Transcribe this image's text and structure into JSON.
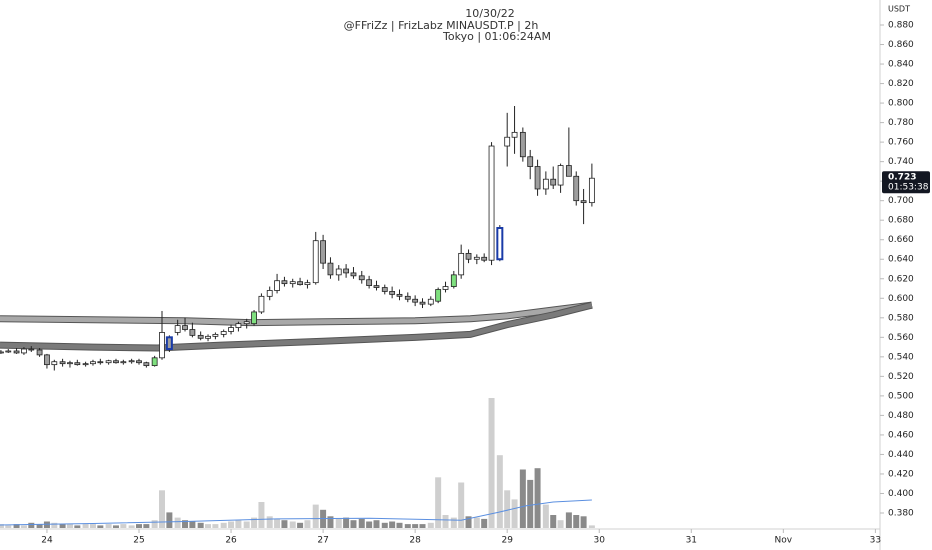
{
  "chart_data": {
    "type": "candlestick",
    "header": [
      "10/30/22",
      "@FFriZz | FrizLabz    MINAUSDT.P | 2h",
      "Tokyo | 01:06:24AM"
    ],
    "currency": "USDT",
    "countdown": "01:53:38",
    "x": [
      23.5,
      23.58,
      23.67,
      23.75,
      23.83,
      23.92,
      24,
      24.08,
      24.17,
      24.25,
      24.33,
      24.42,
      24.5,
      24.58,
      24.67,
      24.75,
      24.83,
      24.92,
      25,
      25.08,
      25.17,
      25.25,
      25.33,
      25.42,
      25.5,
      25.58,
      25.67,
      25.75,
      25.83,
      25.92,
      26,
      26.08,
      26.17,
      26.25,
      26.33,
      26.42,
      26.5,
      26.58,
      26.67,
      26.75,
      26.83,
      26.92,
      27,
      27.08,
      27.17,
      27.25,
      27.33,
      27.42,
      27.5,
      27.58,
      27.67,
      27.75,
      27.83,
      27.92,
      28,
      28.08,
      28.17,
      28.25,
      28.33,
      28.42,
      28.5,
      28.58,
      28.67,
      28.75,
      28.83,
      28.92,
      29,
      29.08,
      29.17,
      29.25,
      29.33,
      29.42,
      29.5,
      29.58,
      29.67,
      29.75,
      29.83,
      29.92
    ],
    "open": [
      0.545,
      0.545,
      0.546,
      0.544,
      0.548,
      0.547,
      0.542,
      0.532,
      0.535,
      0.533,
      0.534,
      0.532,
      0.533,
      0.535,
      0.534,
      0.536,
      0.534,
      0.535,
      0.536,
      0.534,
      0.531,
      0.539,
      0.56,
      0.565,
      0.572,
      0.568,
      0.562,
      0.559,
      0.561,
      0.563,
      0.566,
      0.57,
      0.574,
      0.574,
      0.586,
      0.602,
      0.608,
      0.618,
      0.615,
      0.617,
      0.614,
      0.616,
      0.659,
      0.636,
      0.624,
      0.63,
      0.626,
      0.623,
      0.619,
      0.613,
      0.611,
      0.607,
      0.604,
      0.602,
      0.599,
      0.596,
      0.594,
      0.597,
      0.609,
      0.612,
      0.624,
      0.646,
      0.64,
      0.642,
      0.639,
      0.64,
      0.756,
      0.765,
      0.77,
      0.745,
      0.735,
      0.712,
      0.722,
      0.716,
      0.736,
      0.725,
      0.7,
      0.698
    ],
    "high": [
      0.547,
      0.548,
      0.549,
      0.55,
      0.551,
      0.549,
      0.543,
      0.537,
      0.538,
      0.536,
      0.537,
      0.535,
      0.537,
      0.538,
      0.537,
      0.538,
      0.537,
      0.538,
      0.538,
      0.535,
      0.541,
      0.587,
      0.562,
      0.578,
      0.58,
      0.575,
      0.566,
      0.563,
      0.565,
      0.568,
      0.573,
      0.576,
      0.579,
      0.588,
      0.605,
      0.612,
      0.625,
      0.622,
      0.62,
      0.621,
      0.619,
      0.668,
      0.665,
      0.642,
      0.634,
      0.635,
      0.632,
      0.628,
      0.623,
      0.618,
      0.614,
      0.612,
      0.609,
      0.606,
      0.603,
      0.6,
      0.602,
      0.611,
      0.617,
      0.628,
      0.655,
      0.65,
      0.645,
      0.646,
      0.76,
      0.675,
      0.79,
      0.797,
      0.775,
      0.752,
      0.742,
      0.73,
      0.735,
      0.738,
      0.775,
      0.73,
      0.712,
      0.738
    ],
    "low": [
      0.543,
      0.544,
      0.543,
      0.542,
      0.545,
      0.54,
      0.528,
      0.526,
      0.53,
      0.529,
      0.531,
      0.53,
      0.531,
      0.532,
      0.532,
      0.533,
      0.532,
      0.533,
      0.532,
      0.529,
      0.53,
      0.537,
      0.545,
      0.562,
      0.566,
      0.56,
      0.557,
      0.556,
      0.558,
      0.56,
      0.563,
      0.566,
      0.569,
      0.572,
      0.584,
      0.598,
      0.605,
      0.612,
      0.611,
      0.613,
      0.61,
      0.614,
      0.63,
      0.62,
      0.618,
      0.621,
      0.62,
      0.615,
      0.61,
      0.608,
      0.604,
      0.6,
      0.598,
      0.596,
      0.592,
      0.59,
      0.592,
      0.595,
      0.606,
      0.61,
      0.62,
      0.636,
      0.635,
      0.637,
      0.634,
      0.638,
      0.735,
      0.748,
      0.74,
      0.722,
      0.705,
      0.706,
      0.712,
      0.708,
      0.728,
      0.695,
      0.676,
      0.694
    ],
    "close": [
      0.545,
      0.546,
      0.544,
      0.548,
      0.547,
      0.542,
      0.532,
      0.535,
      0.533,
      0.534,
      0.532,
      0.533,
      0.535,
      0.534,
      0.536,
      0.534,
      0.535,
      0.536,
      0.534,
      0.531,
      0.539,
      0.565,
      0.548,
      0.572,
      0.568,
      0.562,
      0.559,
      0.561,
      0.563,
      0.566,
      0.57,
      0.574,
      0.576,
      0.586,
      0.602,
      0.608,
      0.618,
      0.615,
      0.617,
      0.614,
      0.616,
      0.659,
      0.636,
      0.624,
      0.63,
      0.626,
      0.623,
      0.619,
      0.613,
      0.611,
      0.607,
      0.604,
      0.602,
      0.599,
      0.596,
      0.594,
      0.599,
      0.609,
      0.612,
      0.624,
      0.646,
      0.64,
      0.642,
      0.639,
      0.756,
      0.672,
      0.765,
      0.77,
      0.745,
      0.735,
      0.712,
      0.722,
      0.716,
      0.736,
      0.725,
      0.7,
      0.698,
      0.723
    ],
    "volume": [
      3,
      2,
      3,
      2,
      4,
      3,
      5,
      4,
      3,
      3,
      2,
      3,
      3,
      2,
      3,
      2,
      3,
      2,
      3,
      3,
      6,
      29,
      12,
      8,
      6,
      5,
      4,
      3,
      3,
      4,
      5,
      6,
      5,
      8,
      20,
      9,
      7,
      6,
      5,
      4,
      6,
      18,
      14,
      9,
      7,
      8,
      6,
      7,
      5,
      6,
      4,
      5,
      4,
      3,
      3,
      3,
      4,
      39,
      10,
      8,
      35,
      9,
      8,
      7,
      100,
      56,
      29,
      22,
      45,
      37,
      46,
      18,
      10,
      6,
      12,
      10,
      9,
      2
    ],
    "volume_ma": {
      "x": [
        23.49,
        24.5,
        25.5,
        26.5,
        27.5,
        28.5,
        28.9,
        29.2,
        29.5,
        29.92
      ],
      "values": [
        2.3,
        3.5,
        5,
        7,
        7.5,
        6,
        12,
        17,
        20,
        21.5
      ]
    },
    "bands": [
      {
        "color": "#a8a8a8",
        "x": [
          23.49,
          24.5,
          25.5,
          26.2,
          27,
          28,
          28.6,
          29,
          29.5,
          29.92
        ],
        "values": [
          0.579,
          0.578,
          0.577,
          0.575,
          0.576,
          0.577,
          0.579,
          0.582,
          0.588,
          0.593
        ]
      },
      {
        "color": "#7a7a7a",
        "x": [
          23.49,
          24.5,
          25.2,
          25.9,
          27,
          28,
          28.6,
          29,
          29.5,
          29.92
        ],
        "values": [
          0.552,
          0.55,
          0.549,
          0.552,
          0.556,
          0.56,
          0.563,
          0.573,
          0.583,
          0.593
        ]
      }
    ],
    "green_candles": [
      20,
      33,
      57,
      59
    ],
    "boxed_candles": [
      22,
      65
    ],
    "up_color": "#ffffff",
    "down_color": "#9e9e9e",
    "green_color": "#7fe07f",
    "box_color": "#1a3ba8",
    "up_volume_color": "#cfcfcf",
    "down_volume_color": "#8a8a8a",
    "volume_ma_color": "#5b8fe0",
    "xlim": [
      23.49,
      33.05
    ],
    "xticks": [
      24,
      25,
      26,
      27,
      28,
      29,
      30,
      31,
      {
        "value": 32,
        "label": "Nov"
      },
      33
    ],
    "ylim": [
      0.38,
      0.88
    ],
    "vlim": [
      0,
      100
    ],
    "yticks": [
      {
        "value": 0.38,
        "label": "0.380"
      },
      {
        "value": 0.4,
        "label": "0.400"
      },
      {
        "value": 0.42,
        "label": "0.420"
      },
      {
        "value": 0.44,
        "label": "0.440"
      },
      {
        "value": 0.46,
        "label": "0.460"
      },
      {
        "value": 0.48,
        "label": "0.480"
      },
      {
        "value": 0.5,
        "label": "0.500"
      },
      {
        "value": 0.52,
        "label": "0.520"
      },
      {
        "value": 0.54,
        "label": "0.540"
      },
      {
        "value": 0.56,
        "label": "0.560"
      },
      {
        "value": 0.58,
        "label": "0.580"
      },
      {
        "value": 0.6,
        "label": "0.600"
      },
      {
        "value": 0.62,
        "label": "0.620"
      },
      {
        "value": 0.64,
        "label": "0.640"
      },
      {
        "value": 0.66,
        "label": "0.660"
      },
      {
        "value": 0.68,
        "label": "0.680"
      },
      {
        "value": 0.7,
        "label": "0.700"
      },
      {
        "value": 0.72,
        "label": "0.720"
      },
      {
        "value": 0.74,
        "label": "0.740"
      },
      {
        "value": 0.76,
        "label": "0.760"
      },
      {
        "value": 0.78,
        "label": "0.780"
      },
      {
        "value": 0.8,
        "label": "0.800"
      },
      {
        "value": 0.82,
        "label": "0.820"
      },
      {
        "value": 0.84,
        "label": "0.840"
      },
      {
        "value": 0.86,
        "label": "0.860"
      },
      {
        "value": 0.88,
        "label": "0.880"
      }
    ]
  }
}
